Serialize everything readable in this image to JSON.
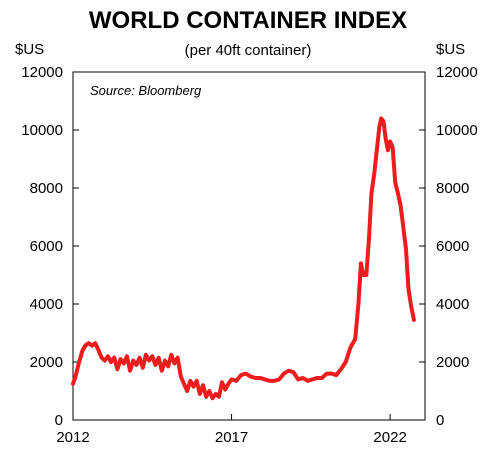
{
  "chart_data": {
    "type": "line",
    "title": "WORLD CONTAINER INDEX",
    "subtitle": "(per 40ft container)",
    "y_unit_left": "$US",
    "y_unit_right": "$US",
    "annotation": "Source: Bloomberg",
    "ylim": [
      0,
      12000
    ],
    "yticks": [
      0,
      2000,
      4000,
      6000,
      8000,
      10000,
      12000
    ],
    "ytick_labels": [
      "0",
      "2000",
      "4000",
      "6000",
      "8000",
      "10000",
      "12000"
    ],
    "xlim": [
      2012.0,
      2023.1
    ],
    "xticks": [
      2012,
      2017,
      2022
    ],
    "xtick_labels": [
      "2012",
      "2017",
      "2022"
    ],
    "grid": false,
    "colors": {
      "line": "#ee1c1c",
      "axis": "#000000"
    },
    "series": [
      {
        "values": [
          [
            2012.0,
            1250
          ],
          [
            2012.08,
            1500
          ],
          [
            2012.18,
            1950
          ],
          [
            2012.3,
            2400
          ],
          [
            2012.4,
            2580
          ],
          [
            2012.5,
            2650
          ],
          [
            2012.6,
            2560
          ],
          [
            2012.7,
            2650
          ],
          [
            2012.8,
            2420
          ],
          [
            2012.9,
            2150
          ],
          [
            2013.0,
            2050
          ],
          [
            2013.1,
            2200
          ],
          [
            2013.2,
            2000
          ],
          [
            2013.3,
            2150
          ],
          [
            2013.4,
            1750
          ],
          [
            2013.5,
            2100
          ],
          [
            2013.6,
            1950
          ],
          [
            2013.7,
            2200
          ],
          [
            2013.8,
            1700
          ],
          [
            2013.9,
            2050
          ],
          [
            2014.0,
            1900
          ],
          [
            2014.1,
            2150
          ],
          [
            2014.2,
            1800
          ],
          [
            2014.3,
            2250
          ],
          [
            2014.4,
            2050
          ],
          [
            2014.5,
            2200
          ],
          [
            2014.6,
            1900
          ],
          [
            2014.7,
            2150
          ],
          [
            2014.8,
            1700
          ],
          [
            2014.9,
            2050
          ],
          [
            2015.0,
            1850
          ],
          [
            2015.1,
            2250
          ],
          [
            2015.2,
            1950
          ],
          [
            2015.3,
            2150
          ],
          [
            2015.4,
            1500
          ],
          [
            2015.5,
            1250
          ],
          [
            2015.6,
            1000
          ],
          [
            2015.7,
            1350
          ],
          [
            2015.8,
            1150
          ],
          [
            2015.9,
            1350
          ],
          [
            2016.0,
            900
          ],
          [
            2016.1,
            1200
          ],
          [
            2016.2,
            800
          ],
          [
            2016.3,
            1000
          ],
          [
            2016.4,
            750
          ],
          [
            2016.5,
            900
          ],
          [
            2016.6,
            800
          ],
          [
            2016.7,
            1300
          ],
          [
            2016.8,
            1050
          ],
          [
            2016.9,
            1250
          ],
          [
            2017.0,
            1400
          ],
          [
            2017.15,
            1350
          ],
          [
            2017.3,
            1550
          ],
          [
            2017.45,
            1600
          ],
          [
            2017.6,
            1500
          ],
          [
            2017.75,
            1450
          ],
          [
            2017.9,
            1450
          ],
          [
            2018.05,
            1400
          ],
          [
            2018.2,
            1350
          ],
          [
            2018.35,
            1350
          ],
          [
            2018.5,
            1400
          ],
          [
            2018.65,
            1600
          ],
          [
            2018.8,
            1700
          ],
          [
            2018.95,
            1650
          ],
          [
            2019.1,
            1400
          ],
          [
            2019.25,
            1450
          ],
          [
            2019.4,
            1350
          ],
          [
            2019.55,
            1400
          ],
          [
            2019.7,
            1450
          ],
          [
            2019.85,
            1450
          ],
          [
            2020.0,
            1600
          ],
          [
            2020.15,
            1600
          ],
          [
            2020.3,
            1550
          ],
          [
            2020.45,
            1750
          ],
          [
            2020.6,
            2000
          ],
          [
            2020.75,
            2500
          ],
          [
            2020.9,
            2800
          ],
          [
            2021.0,
            4000
          ],
          [
            2021.08,
            5400
          ],
          [
            2021.15,
            5000
          ],
          [
            2021.25,
            5000
          ],
          [
            2021.33,
            6200
          ],
          [
            2021.41,
            7800
          ],
          [
            2021.5,
            8500
          ],
          [
            2021.58,
            9300
          ],
          [
            2021.66,
            10100
          ],
          [
            2021.72,
            10400
          ],
          [
            2021.79,
            10300
          ],
          [
            2021.86,
            9700
          ],
          [
            2021.93,
            9300
          ],
          [
            2022.0,
            9600
          ],
          [
            2022.08,
            9400
          ],
          [
            2022.16,
            8200
          ],
          [
            2022.25,
            7800
          ],
          [
            2022.33,
            7400
          ],
          [
            2022.41,
            6700
          ],
          [
            2022.5,
            5900
          ],
          [
            2022.58,
            4500
          ],
          [
            2022.66,
            3950
          ],
          [
            2022.75,
            3450
          ]
        ]
      }
    ]
  }
}
